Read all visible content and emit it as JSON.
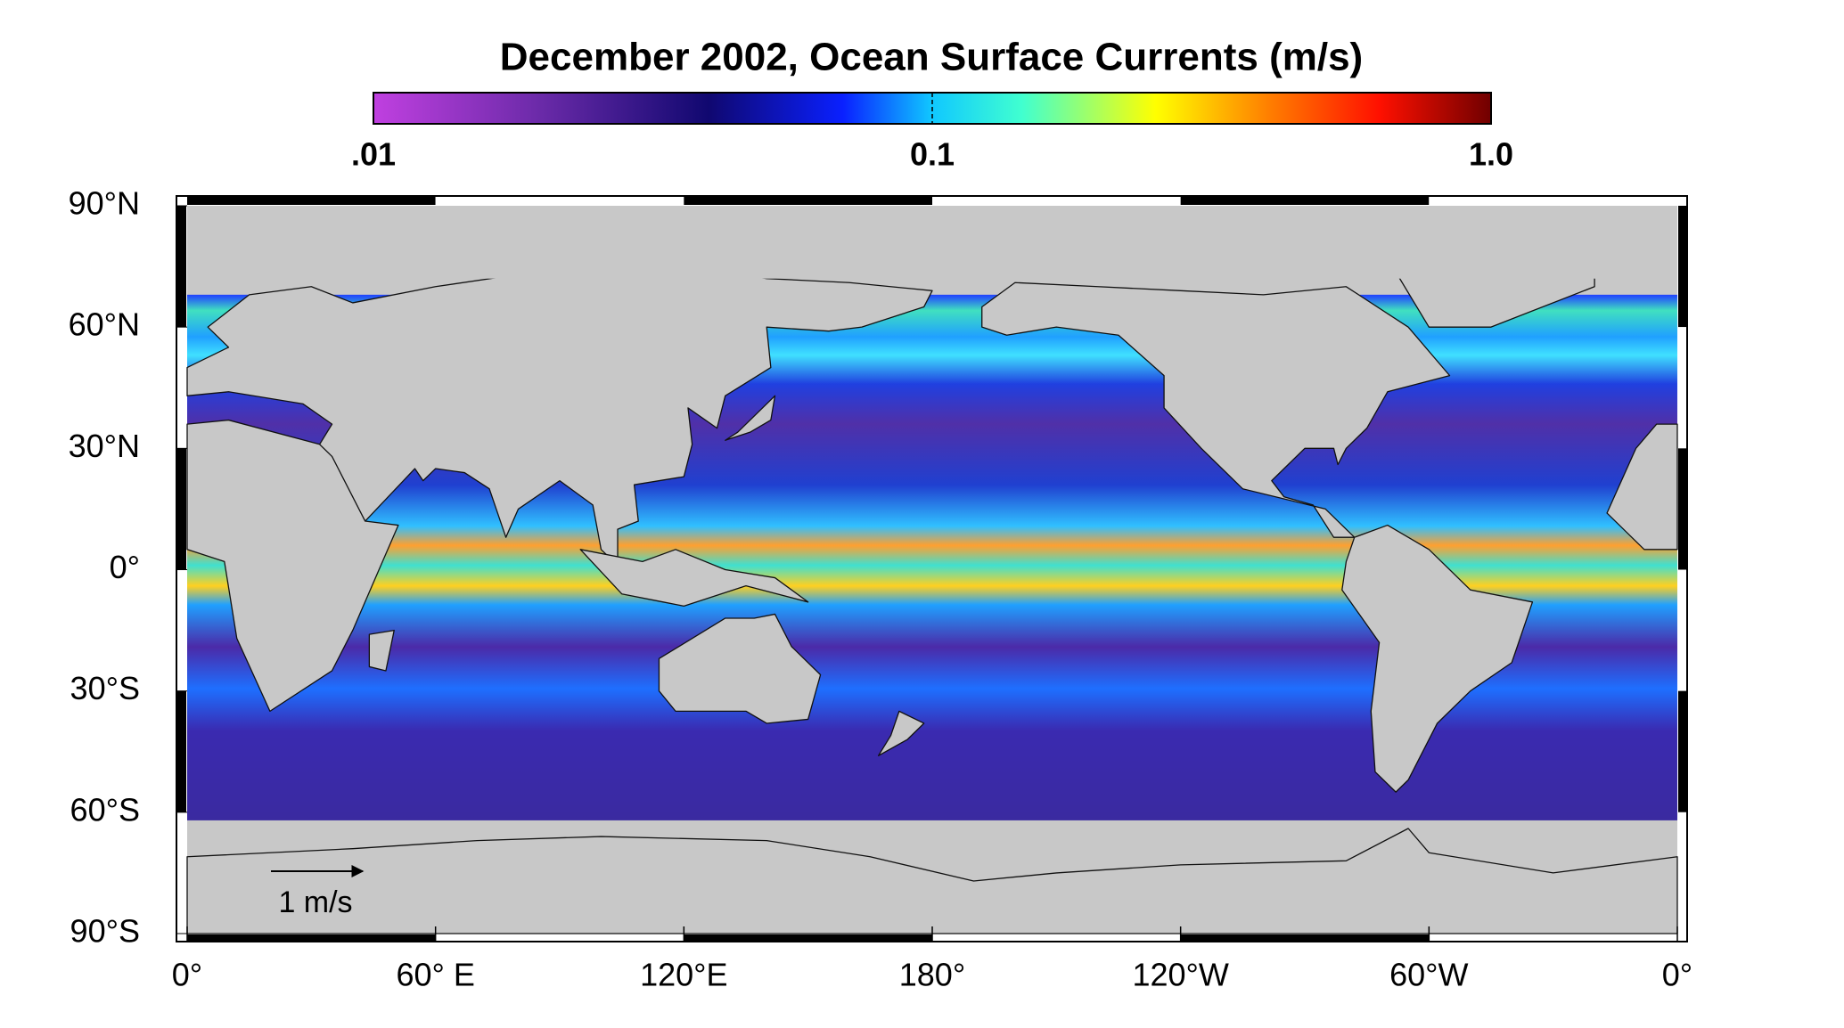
{
  "title": "December 2002, Ocean Surface Currents  (m/s)",
  "colorbar": {
    "scale": "log",
    "lim": [
      0.01,
      1
    ],
    "ticks": [
      {
        "value": 0.01,
        "label": ".01"
      },
      {
        "value": 0.1,
        "label": "0.1"
      },
      {
        "value": 1,
        "label": "1.0"
      }
    ]
  },
  "map": {
    "latlim": [
      -90,
      90
    ],
    "lonlim": [
      0,
      360
    ],
    "lat_ticks": [
      {
        "value": 90,
        "label": "90°N"
      },
      {
        "value": 60,
        "label": "60°N"
      },
      {
        "value": 30,
        "label": "30°N"
      },
      {
        "value": 0,
        "label": "0°"
      },
      {
        "value": -30,
        "label": "30°S"
      },
      {
        "value": -60,
        "label": "60°S"
      },
      {
        "value": -90,
        "label": "90°S"
      }
    ],
    "lon_ticks": [
      {
        "value": 0,
        "label": "0°"
      },
      {
        "value": 60,
        "label": "60° E"
      },
      {
        "value": 120,
        "label": "120°E"
      },
      {
        "value": 180,
        "label": "180°"
      },
      {
        "value": 240,
        "label": "120°W"
      },
      {
        "value": 300,
        "label": "60°W"
      },
      {
        "value": 360,
        "label": "0°"
      }
    ],
    "scale_arrow": "1 m/s"
  }
}
